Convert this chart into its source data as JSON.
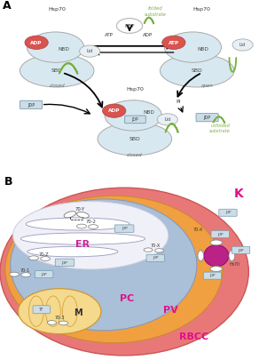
{
  "bg_color": "#ffffff",
  "colors": {
    "adp_oval": "#d9534f",
    "nbd_body": "#d8e8f0",
    "sbd_body": "#d8e8f0",
    "lid_body": "#e8f0f5",
    "jdp_box": "#ccdde8",
    "substrate_green": "#7ab040",
    "rbcc_outer": "#e88080",
    "pv_layer": "#f0a040",
    "pc_inner": "#aabfd8",
    "mito_fill": "#f5d98c",
    "nucleus_magenta": "#bb2288",
    "k_label": "#e0108a",
    "er_label": "#cc2299"
  }
}
